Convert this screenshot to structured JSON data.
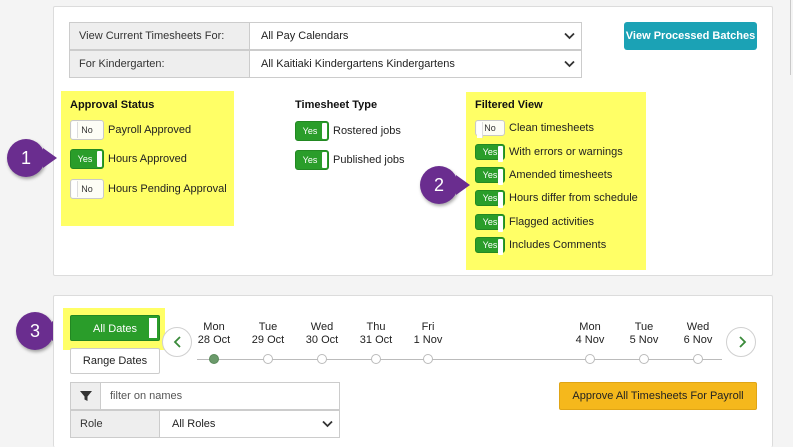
{
  "filters": {
    "timesheets_label": "View Current Timesheets For:",
    "timesheets_value": "All Pay Calendars",
    "kindergarten_label": "For Kindergarten:",
    "kindergarten_value": "All Kaitiaki Kindergartens Kindergartens"
  },
  "view_processed_label": "View Processed Batches",
  "approval_status": {
    "title": "Approval Status",
    "items": [
      {
        "toggle": "No",
        "label": "Payroll Approved"
      },
      {
        "toggle": "Yes",
        "label": "Hours Approved"
      },
      {
        "toggle": "No",
        "label": "Hours Pending Approval"
      }
    ]
  },
  "timesheet_type": {
    "title": "Timesheet Type",
    "items": [
      {
        "toggle": "Yes",
        "label": "Rostered jobs"
      },
      {
        "toggle": "Yes",
        "label": "Published jobs"
      }
    ]
  },
  "filtered_view": {
    "title": "Filtered View",
    "items": [
      {
        "toggle": "No",
        "label": "Clean timesheets"
      },
      {
        "toggle": "Yes",
        "label": "With errors or warnings"
      },
      {
        "toggle": "Yes",
        "label": "Amended timesheets"
      },
      {
        "toggle": "Yes",
        "label": "Hours differ from schedule"
      },
      {
        "toggle": "Yes",
        "label": "Flagged activities"
      },
      {
        "toggle": "Yes",
        "label": "Includes Comments"
      }
    ]
  },
  "callouts": [
    "1",
    "2",
    "3"
  ],
  "dates": {
    "all_label": "All Dates",
    "range_label": "Range Dates",
    "prev_icon": "chevron-left-icon",
    "next_icon": "chevron-right-icon",
    "days": [
      {
        "dow": "Mon",
        "date": "28 Oct"
      },
      {
        "dow": "Tue",
        "date": "29 Oct"
      },
      {
        "dow": "Wed",
        "date": "30 Oct"
      },
      {
        "dow": "Thu",
        "date": "31 Oct"
      },
      {
        "dow": "Fri",
        "date": "1 Nov"
      },
      {
        "dow": "Mon",
        "date": "4 Nov"
      },
      {
        "dow": "Tue",
        "date": "5 Nov"
      },
      {
        "dow": "Wed",
        "date": "6 Nov"
      }
    ]
  },
  "name_filter": {
    "placeholder": "filter on names",
    "icon": "filter-icon"
  },
  "role": {
    "label": "Role",
    "value": "All Roles"
  },
  "approve_all_label": "Approve All Timesheets For Payroll",
  "colors": {
    "teal": "#1ba2b5",
    "toggle_on": "#2a9d2a",
    "highlight": "#ffff66",
    "callout": "#6a2d8f",
    "approve": "#f5b81c"
  }
}
